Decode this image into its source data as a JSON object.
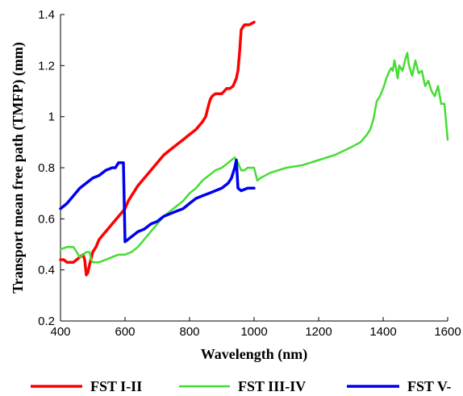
{
  "chart_data": {
    "type": "line",
    "xlabel": "Wavelength (nm)",
    "ylabel": "Transport mean free path (TMFP) (mm)",
    "xlim": [
      400,
      1600
    ],
    "ylim": [
      0.2,
      1.4
    ],
    "xticks": [
      400,
      600,
      800,
      1000,
      1200,
      1400,
      1600
    ],
    "yticks": [
      0.2,
      0.4,
      0.6,
      0.8,
      1,
      1.2,
      1.4
    ],
    "grid": false,
    "legend_position": "bottom",
    "series": [
      {
        "name": "FST I-II",
        "color": "#ff0000",
        "x": [
          400,
          410,
          420,
          430,
          440,
          450,
          460,
          470,
          475,
          480,
          485,
          490,
          500,
          510,
          520,
          540,
          560,
          580,
          600,
          610,
          620,
          640,
          660,
          680,
          700,
          720,
          740,
          760,
          780,
          800,
          820,
          840,
          850,
          860,
          865,
          870,
          880,
          900,
          915,
          925,
          935,
          945,
          950,
          955,
          960,
          970,
          985,
          1000
        ],
        "y": [
          0.44,
          0.44,
          0.43,
          0.43,
          0.43,
          0.44,
          0.45,
          0.46,
          0.44,
          0.38,
          0.39,
          0.42,
          0.47,
          0.49,
          0.52,
          0.55,
          0.58,
          0.61,
          0.64,
          0.67,
          0.69,
          0.73,
          0.76,
          0.79,
          0.82,
          0.85,
          0.87,
          0.89,
          0.91,
          0.93,
          0.95,
          0.98,
          1.0,
          1.05,
          1.07,
          1.08,
          1.09,
          1.09,
          1.11,
          1.11,
          1.12,
          1.15,
          1.18,
          1.25,
          1.34,
          1.36,
          1.36,
          1.37
        ]
      },
      {
        "name": "FST III-IV",
        "color": "#44dd33",
        "x": [
          400,
          420,
          440,
          450,
          460,
          470,
          480,
          490,
          495,
          500,
          520,
          540,
          560,
          580,
          600,
          620,
          640,
          660,
          680,
          700,
          720,
          740,
          760,
          780,
          800,
          820,
          840,
          860,
          880,
          900,
          920,
          940,
          950,
          960,
          970,
          980,
          990,
          1000,
          1010,
          1020,
          1050,
          1100,
          1150,
          1200,
          1250,
          1300,
          1330,
          1350,
          1360,
          1370,
          1380,
          1390,
          1400,
          1410,
          1420,
          1425,
          1430,
          1435,
          1440,
          1445,
          1450,
          1460,
          1470,
          1475,
          1480,
          1490,
          1500,
          1510,
          1520,
          1530,
          1540,
          1550,
          1560,
          1570,
          1580,
          1590,
          1600
        ],
        "y": [
          0.48,
          0.49,
          0.49,
          0.47,
          0.45,
          0.46,
          0.47,
          0.47,
          0.44,
          0.43,
          0.43,
          0.44,
          0.45,
          0.46,
          0.46,
          0.47,
          0.49,
          0.52,
          0.55,
          0.58,
          0.61,
          0.63,
          0.65,
          0.67,
          0.7,
          0.72,
          0.75,
          0.77,
          0.79,
          0.8,
          0.82,
          0.84,
          0.82,
          0.79,
          0.79,
          0.8,
          0.8,
          0.8,
          0.75,
          0.76,
          0.78,
          0.8,
          0.81,
          0.83,
          0.85,
          0.88,
          0.9,
          0.93,
          0.95,
          0.99,
          1.06,
          1.08,
          1.11,
          1.15,
          1.18,
          1.19,
          1.18,
          1.22,
          1.19,
          1.15,
          1.2,
          1.18,
          1.23,
          1.25,
          1.2,
          1.16,
          1.22,
          1.17,
          1.18,
          1.12,
          1.14,
          1.1,
          1.08,
          1.12,
          1.05,
          1.05,
          0.91
        ]
      },
      {
        "name": "FST V-",
        "color": "#0000ee",
        "x": [
          400,
          420,
          440,
          460,
          480,
          500,
          520,
          540,
          560,
          570,
          580,
          590,
          595,
          600,
          620,
          640,
          660,
          680,
          700,
          720,
          740,
          760,
          780,
          800,
          820,
          840,
          860,
          880,
          900,
          920,
          930,
          940,
          945,
          950,
          960,
          980,
          1000
        ],
        "y": [
          0.64,
          0.66,
          0.69,
          0.72,
          0.74,
          0.76,
          0.77,
          0.79,
          0.8,
          0.8,
          0.82,
          0.82,
          0.82,
          0.51,
          0.53,
          0.55,
          0.56,
          0.58,
          0.59,
          0.61,
          0.62,
          0.63,
          0.64,
          0.66,
          0.68,
          0.69,
          0.7,
          0.71,
          0.72,
          0.74,
          0.76,
          0.8,
          0.83,
          0.72,
          0.71,
          0.72,
          0.72
        ]
      }
    ]
  }
}
